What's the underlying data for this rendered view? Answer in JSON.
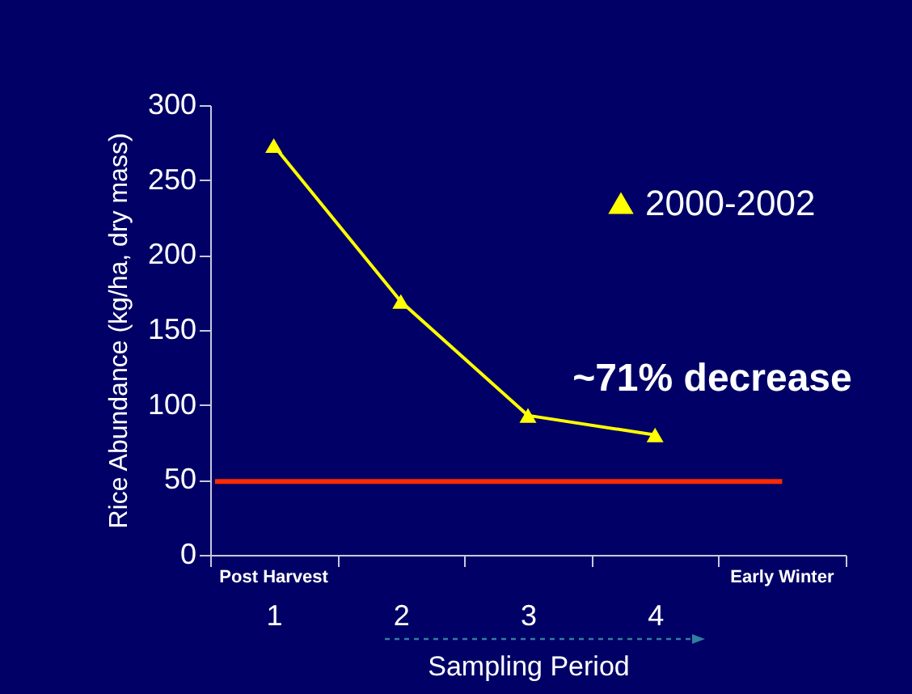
{
  "chart_data": {
    "type": "line",
    "xlabel": "Sampling Period",
    "ylabel": "Rice Abundance (kg/ha, dry mass)",
    "categories": [
      "1",
      "2",
      "3",
      "4",
      null
    ],
    "series": [
      {
        "name": "2000-2002",
        "color": "#ffff00",
        "values": [
          273,
          169,
          93,
          80,
          null
        ]
      }
    ],
    "ylim": [
      0,
      300
    ],
    "yticks": [
      0,
      50,
      100,
      150,
      200,
      250,
      300
    ],
    "ref_lines": [
      {
        "axis": "y",
        "value": 49,
        "color": "#ff2a00"
      }
    ],
    "annotations": [
      "Post Harvest",
      "Early Winter",
      "~71% decrease"
    ],
    "marker": "triangle",
    "legend": "top right",
    "grid": false
  }
}
